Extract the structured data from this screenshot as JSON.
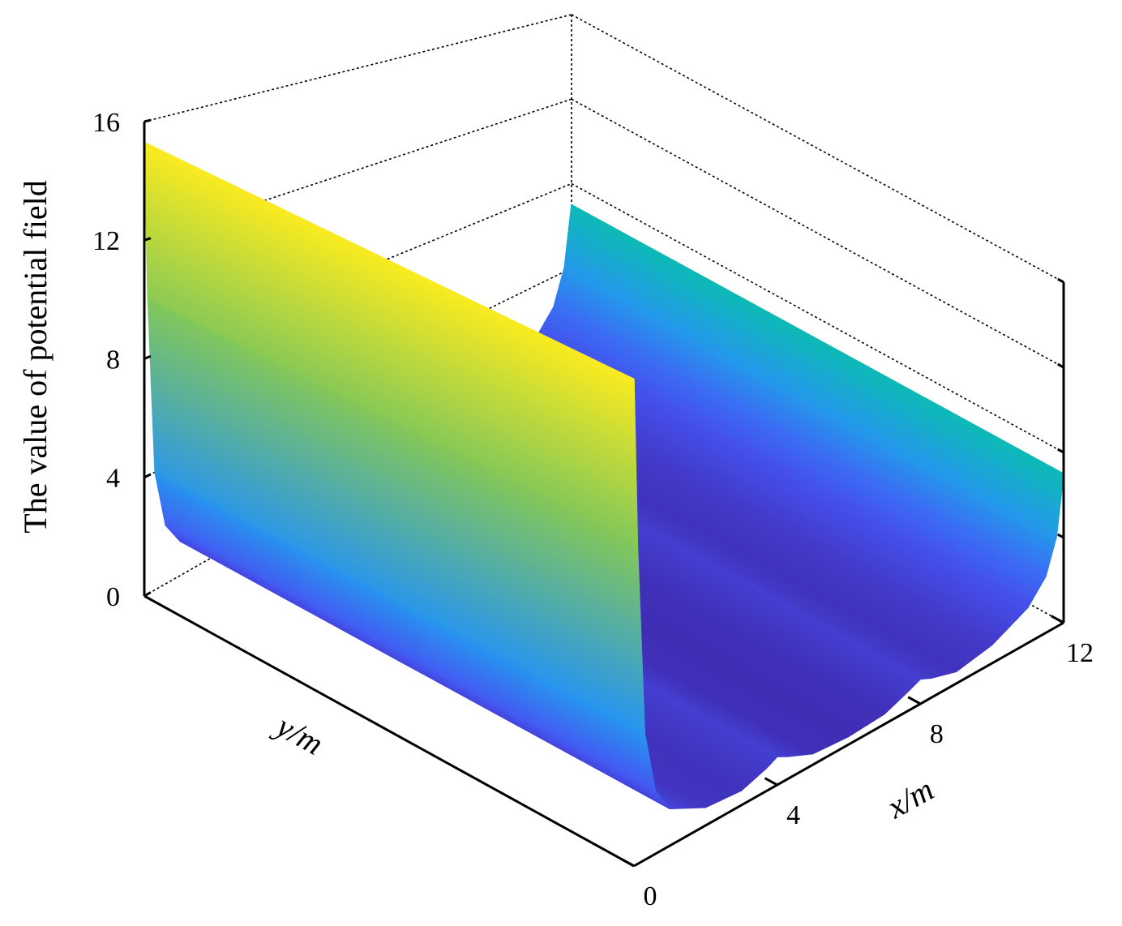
{
  "chart_data": {
    "type": "surface",
    "z_label": "The value of potential field",
    "x_label": "x/m",
    "y_label": "y/m",
    "x": [
      0,
      0.1,
      0.3,
      0.6,
      1,
      2,
      3,
      3.7,
      4,
      4.3,
      5,
      6,
      7,
      7.7,
      8,
      8.3,
      9,
      10,
      11,
      11.5,
      11.8,
      12
    ],
    "values": [
      15.3,
      10,
      4,
      2,
      1.2,
      0.6,
      0.5,
      0.8,
      1,
      0.8,
      0.4,
      0.3,
      0.4,
      0.8,
      1,
      0.8,
      0.5,
      0.8,
      1.6,
      2.6,
      4.2,
      7
    ],
    "xlim": [
      0,
      12
    ],
    "xticks": [
      0,
      4,
      8,
      12
    ],
    "zlim": [
      0,
      16
    ],
    "zticks": [
      0,
      4,
      8,
      12,
      16
    ],
    "colormap": [
      "#3e26a8",
      "#4653f2",
      "#2d8cf6",
      "#14b0d5",
      "#0bbbb3",
      "#48cb86",
      "#a7c53e",
      "#f6ba39",
      "#fcd22e",
      "#f9fb15"
    ],
    "grid": true
  }
}
